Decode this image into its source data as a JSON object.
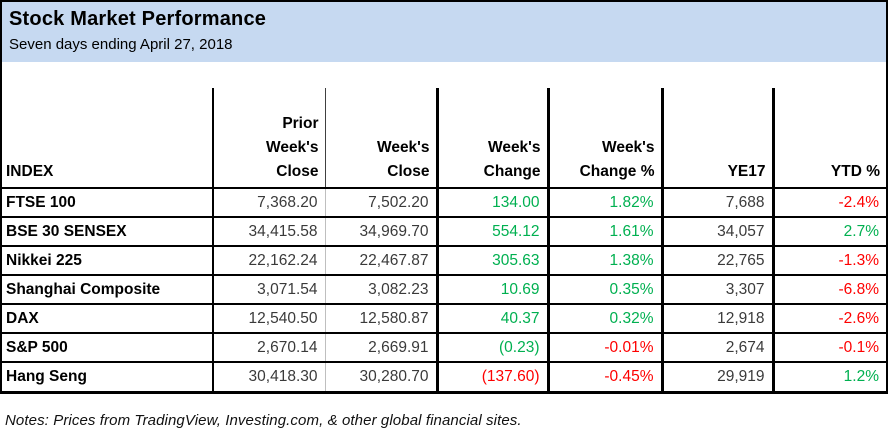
{
  "colors": {
    "positive": "#00B050",
    "negative": "#FE0000",
    "neutral_number": "#3A3A3A",
    "title_band_bg": "#C6D9F1",
    "border": "#000000"
  },
  "chart_data": {
    "type": "table",
    "title": "Stock Market Performance",
    "subtitle": "Seven days ending April 27, 2018",
    "columns": [
      {
        "label": "INDEX"
      },
      {
        "label": "Prior\nWeek's\nClose"
      },
      {
        "label": "Week's\nClose"
      },
      {
        "label": "Week's\nChange"
      },
      {
        "label": "Week's\nChange %"
      },
      {
        "label": "YE17"
      },
      {
        "label": "YTD %"
      }
    ],
    "rows": [
      {
        "name": "FTSE 100",
        "cells": [
          {
            "v": "7,368.20",
            "c": "k"
          },
          {
            "v": "7,502.20",
            "c": "k"
          },
          {
            "v": "134.00",
            "c": "g"
          },
          {
            "v": "1.82%",
            "c": "g"
          },
          {
            "v": "7,688",
            "c": "k"
          },
          {
            "v": "-2.4%",
            "c": "r"
          }
        ]
      },
      {
        "name": "BSE 30 SENSEX",
        "cells": [
          {
            "v": "34,415.58",
            "c": "k"
          },
          {
            "v": "34,969.70",
            "c": "k"
          },
          {
            "v": "554.12",
            "c": "g"
          },
          {
            "v": "1.61%",
            "c": "g"
          },
          {
            "v": "34,057",
            "c": "k"
          },
          {
            "v": "2.7%",
            "c": "g"
          }
        ]
      },
      {
        "name": "Nikkei 225",
        "cells": [
          {
            "v": "22,162.24",
            "c": "k"
          },
          {
            "v": "22,467.87",
            "c": "k"
          },
          {
            "v": "305.63",
            "c": "g"
          },
          {
            "v": "1.38%",
            "c": "g"
          },
          {
            "v": "22,765",
            "c": "k"
          },
          {
            "v": "-1.3%",
            "c": "r"
          }
        ]
      },
      {
        "name": "Shanghai Composite",
        "cells": [
          {
            "v": "3,071.54",
            "c": "k"
          },
          {
            "v": "3,082.23",
            "c": "k"
          },
          {
            "v": "10.69",
            "c": "g"
          },
          {
            "v": "0.35%",
            "c": "g"
          },
          {
            "v": "3,307",
            "c": "k"
          },
          {
            "v": "-6.8%",
            "c": "r"
          }
        ]
      },
      {
        "name": "DAX",
        "cells": [
          {
            "v": "12,540.50",
            "c": "k"
          },
          {
            "v": "12,580.87",
            "c": "k"
          },
          {
            "v": "40.37",
            "c": "g"
          },
          {
            "v": "0.32%",
            "c": "g"
          },
          {
            "v": "12,918",
            "c": "k"
          },
          {
            "v": "-2.6%",
            "c": "r"
          }
        ]
      },
      {
        "name": "S&P 500",
        "cells": [
          {
            "v": "2,670.14",
            "c": "k"
          },
          {
            "v": "2,669.91",
            "c": "k"
          },
          {
            "v": "(0.23)",
            "c": "g"
          },
          {
            "v": "-0.01%",
            "c": "r"
          },
          {
            "v": "2,674",
            "c": "k"
          },
          {
            "v": "-0.1%",
            "c": "r"
          }
        ]
      },
      {
        "name": "Hang Seng",
        "cells": [
          {
            "v": "30,418.30",
            "c": "k"
          },
          {
            "v": "30,280.70",
            "c": "k"
          },
          {
            "v": "(137.60)",
            "c": "r"
          },
          {
            "v": "-0.45%",
            "c": "r"
          },
          {
            "v": "29,919",
            "c": "k"
          },
          {
            "v": "1.2%",
            "c": "g"
          }
        ]
      }
    ],
    "notes": "Notes: Prices from TradingView, Investing.com, & other global financial sites."
  }
}
